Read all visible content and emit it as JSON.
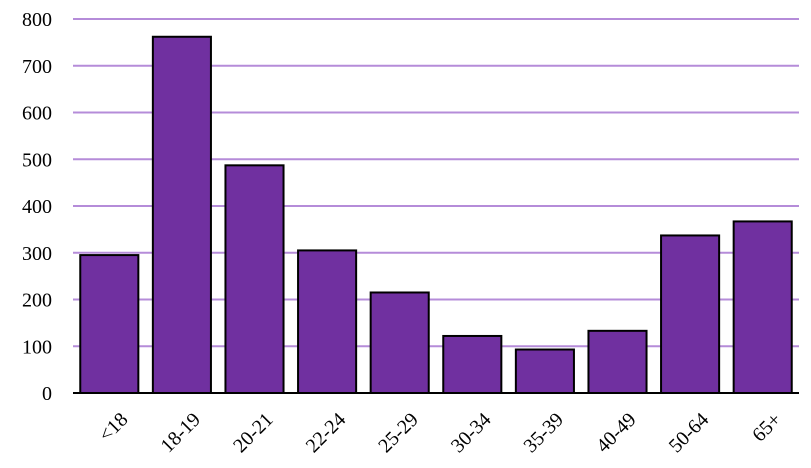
{
  "colors": {
    "bar_fill": "#7030A0",
    "bar_stroke": "#000000",
    "gridline": "#B58CD9",
    "axis": "#000000",
    "text": "#000000"
  },
  "chart_data": {
    "type": "bar",
    "title": "",
    "xlabel": "",
    "ylabel": "",
    "categories": [
      "<18",
      "18-19",
      "20-21",
      "22-24",
      "25-29",
      "30-34",
      "35-39",
      "40-49",
      "50-64",
      "65+"
    ],
    "values": [
      295,
      762,
      487,
      305,
      215,
      122,
      93,
      133,
      337,
      367
    ],
    "ylim": [
      0,
      800
    ],
    "yticks": [
      "0",
      "100",
      "200",
      "300",
      "400",
      "500",
      "600",
      "700",
      "800"
    ],
    "grid": true,
    "legend": "none",
    "x_label_rotation": "45° counter-clockwise"
  }
}
